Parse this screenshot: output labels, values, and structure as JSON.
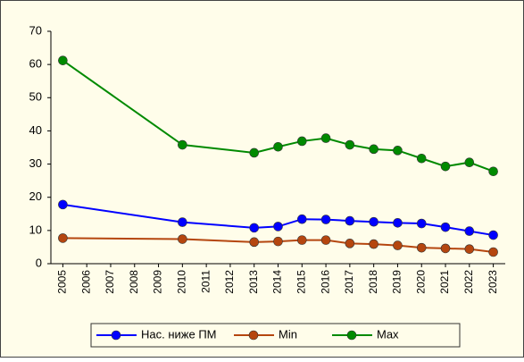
{
  "chart_data": {
    "type": "line",
    "x": [
      2005,
      2010,
      2013,
      2014,
      2015,
      2016,
      2017,
      2018,
      2019,
      2020,
      2021,
      2022,
      2023
    ],
    "xlim": [
      2004.5,
      2023.5
    ],
    "xticks": [
      2005,
      2006,
      2007,
      2008,
      2009,
      2010,
      2011,
      2012,
      2013,
      2014,
      2015,
      2016,
      2017,
      2018,
      2019,
      2020,
      2021,
      2022,
      2023
    ],
    "ylim": [
      0,
      70
    ],
    "yticks": [
      0,
      10,
      20,
      30,
      40,
      50,
      60,
      70
    ],
    "legend": "bottom",
    "series": [
      {
        "name": "Нас. ниже ПМ",
        "color": "#0000ff",
        "values": [
          17.8,
          12.5,
          10.8,
          11.2,
          13.4,
          13.3,
          12.9,
          12.6,
          12.3,
          12.1,
          11.0,
          9.8,
          8.6
        ]
      },
      {
        "name": "Min",
        "color": "#b5460f",
        "values": [
          7.7,
          7.4,
          6.5,
          6.7,
          7.1,
          7.1,
          6.1,
          5.9,
          5.5,
          4.8,
          4.6,
          4.4,
          3.5
        ]
      },
      {
        "name": "Max",
        "color": "#008a00",
        "values": [
          61.2,
          35.8,
          33.4,
          35.2,
          36.9,
          37.8,
          35.8,
          34.5,
          34.1,
          31.7,
          29.3,
          30.5,
          27.8
        ]
      }
    ]
  }
}
